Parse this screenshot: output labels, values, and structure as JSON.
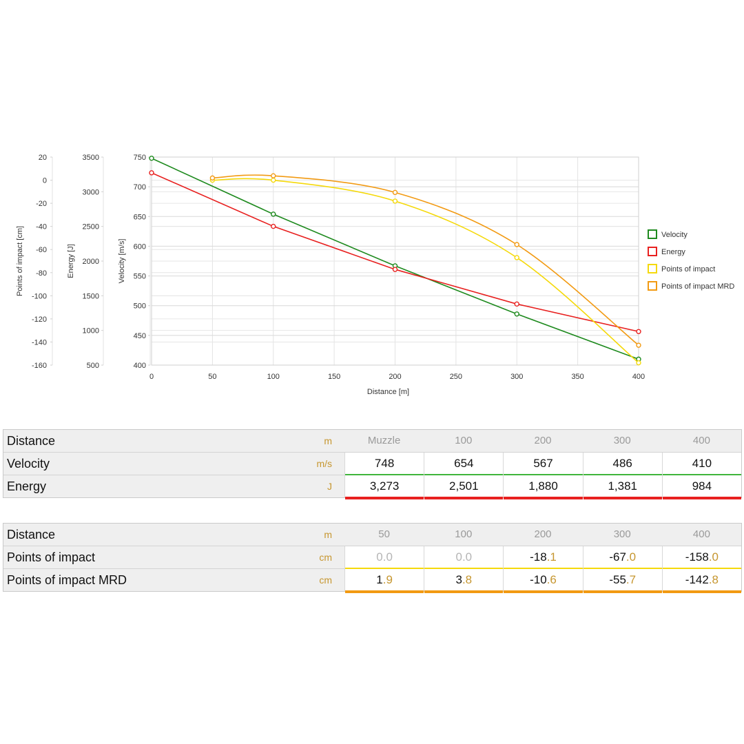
{
  "chart_data": {
    "type": "line",
    "xlabel": "Distance [m]",
    "x_ticks": [
      "0",
      "50",
      "100",
      "150",
      "200",
      "250",
      "300",
      "350",
      "400"
    ],
    "xlim": [
      0,
      400
    ],
    "y_axes": [
      {
        "label": "Points of impact [cm]",
        "range": [
          -160,
          20
        ],
        "ticks": [
          "20",
          "0",
          "-20",
          "-40",
          "-60",
          "-80",
          "-100",
          "-120",
          "-140",
          "-160"
        ]
      },
      {
        "label": "Energy [J]",
        "range": [
          500,
          3500
        ],
        "ticks": [
          "3500",
          "3000",
          "2500",
          "2000",
          "1500",
          "1000",
          "500"
        ]
      },
      {
        "label": "Velocity [m/s]",
        "range": [
          400,
          750
        ],
        "ticks": [
          "750",
          "700",
          "650",
          "600",
          "550",
          "500",
          "450",
          "400"
        ]
      }
    ],
    "grid": true,
    "legend_position": "right",
    "series": [
      {
        "name": "Velocity",
        "color": "#1e8a1e",
        "axis": 2,
        "x": [
          0,
          100,
          200,
          300,
          400
        ],
        "values": [
          748,
          654,
          567,
          486,
          410
        ]
      },
      {
        "name": "Energy",
        "color": "#e8201f",
        "axis": 1,
        "x": [
          0,
          100,
          200,
          300,
          400
        ],
        "values": [
          3273,
          2501,
          1880,
          1381,
          984
        ]
      },
      {
        "name": "Points of impact",
        "color": "#f5d90a",
        "axis": 0,
        "x": [
          50,
          100,
          200,
          300,
          400
        ],
        "values": [
          0.0,
          0.0,
          -18.1,
          -67.0,
          -158.0
        ]
      },
      {
        "name": "Points of impact MRD",
        "color": "#f29a12",
        "axis": 0,
        "x": [
          50,
          100,
          200,
          300,
          400
        ],
        "values": [
          1.9,
          3.8,
          -10.6,
          -55.7,
          -142.8
        ]
      }
    ]
  },
  "table1": {
    "rows": [
      {
        "label": "Distance",
        "unit": "m",
        "cells": [
          "Muzzle",
          "100",
          "200",
          "300",
          "400"
        ]
      },
      {
        "label": "Velocity",
        "unit": "m/s",
        "cells": [
          "748",
          "654",
          "567",
          "486",
          "410"
        ],
        "color": "#3fb53c"
      },
      {
        "label": "Energy",
        "unit": "J",
        "cells": [
          "3,273",
          "2,501",
          "1,880",
          "1,381",
          "984"
        ],
        "color": "#e8201f"
      }
    ]
  },
  "table2": {
    "rows": [
      {
        "label": "Distance",
        "unit": "m",
        "cells": [
          "50",
          "100",
          "200",
          "300",
          "400"
        ]
      },
      {
        "label": "Points of impact",
        "unit": "cm",
        "cells": [
          "0.0",
          "0.0",
          "-18.1",
          "-67.0",
          "-158.0"
        ],
        "color": "#f5d90a"
      },
      {
        "label": "Points of impact MRD",
        "unit": "cm",
        "cells": [
          "1.9",
          "3.8",
          "-10.6",
          "-55.7",
          "-142.8"
        ],
        "color": "#f29a12"
      }
    ]
  }
}
